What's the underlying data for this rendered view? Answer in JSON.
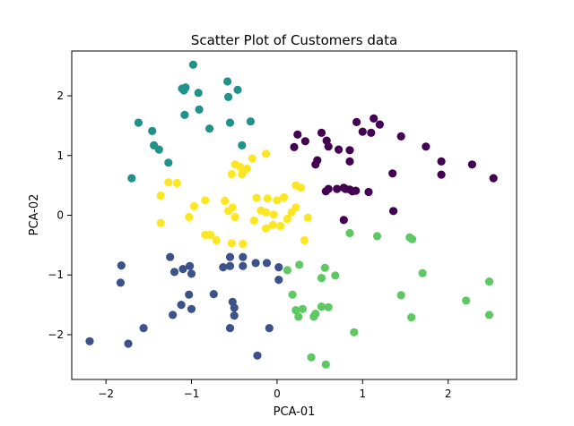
{
  "chart_data": {
    "type": "scatter",
    "title": "Scatter Plot of Customers data",
    "xlabel": "PCA-01",
    "ylabel": "PCA-02",
    "xlim": [
      -2.4,
      2.8
    ],
    "ylim": [
      -2.75,
      2.75
    ],
    "xticks": [
      -2,
      -1,
      0,
      1,
      2
    ],
    "yticks": [
      -2,
      -1,
      0,
      1,
      2
    ],
    "xtick_labels": [
      "−2",
      "−1",
      "0",
      "1",
      "2"
    ],
    "ytick_labels": [
      "−2",
      "−1",
      "0",
      "1",
      "2"
    ],
    "grid": false,
    "series": [
      {
        "color": "#440154",
        "points": [
          [
            0.24,
            1.35
          ],
          [
            0.2,
            1.14
          ],
          [
            0.33,
            1.24
          ],
          [
            0.52,
            1.38
          ],
          [
            0.58,
            1.25
          ],
          [
            0.6,
            1.15
          ],
          [
            0.47,
            0.92
          ],
          [
            0.45,
            0.85
          ],
          [
            0.72,
            1.1
          ],
          [
            0.85,
            1.09
          ],
          [
            0.85,
            0.9
          ],
          [
            0.93,
            1.56
          ],
          [
            1.0,
            1.4
          ],
          [
            1.1,
            1.38
          ],
          [
            1.13,
            1.62
          ],
          [
            1.2,
            1.52
          ],
          [
            1.45,
            1.32
          ],
          [
            1.74,
            1.15
          ],
          [
            1.92,
            0.9
          ],
          [
            1.92,
            0.68
          ],
          [
            2.28,
            0.85
          ],
          [
            2.53,
            0.62
          ],
          [
            1.35,
            0.7
          ],
          [
            0.57,
            0.4
          ],
          [
            0.7,
            0.44
          ],
          [
            0.78,
            0.46
          ],
          [
            0.85,
            0.43
          ],
          [
            0.88,
            0.4
          ],
          [
            0.92,
            0.41
          ],
          [
            1.07,
            0.39
          ],
          [
            0.6,
            0.44
          ],
          [
            0.8,
            0.44
          ],
          [
            0.78,
            -0.08
          ],
          [
            1.36,
            0.07
          ]
        ]
      },
      {
        "color": "#3b528b",
        "points": [
          [
            -2.19,
            -2.11
          ],
          [
            -1.82,
            -0.84
          ],
          [
            -1.83,
            -1.13
          ],
          [
            -1.74,
            -2.15
          ],
          [
            -1.56,
            -1.89
          ],
          [
            -1.25,
            -0.7
          ],
          [
            -1.2,
            -0.95
          ],
          [
            -1.1,
            -0.9
          ],
          [
            -1.02,
            -0.85
          ],
          [
            -1.0,
            -0.98
          ],
          [
            -1.03,
            -1.33
          ],
          [
            -1.12,
            -1.5
          ],
          [
            -1.22,
            -1.67
          ],
          [
            -1.0,
            -1.57
          ],
          [
            -0.74,
            -1.32
          ],
          [
            -0.63,
            -0.87
          ],
          [
            -0.55,
            -0.85
          ],
          [
            -0.55,
            -0.7
          ],
          [
            -0.4,
            -0.7
          ],
          [
            -0.4,
            -0.85
          ],
          [
            -0.25,
            -0.8
          ],
          [
            -0.12,
            -0.8
          ],
          [
            0.02,
            -0.87
          ],
          [
            0.02,
            -1.08
          ],
          [
            -0.52,
            -1.45
          ],
          [
            -0.5,
            -1.55
          ],
          [
            -0.5,
            -1.68
          ],
          [
            -0.55,
            -1.89
          ],
          [
            -0.23,
            -2.35
          ],
          [
            -0.09,
            -1.89
          ]
        ]
      },
      {
        "color": "#21918c",
        "points": [
          [
            -0.98,
            2.52
          ],
          [
            -1.11,
            2.12
          ],
          [
            -1.07,
            2.14
          ],
          [
            -1.09,
            2.09
          ],
          [
            -0.92,
            2.05
          ],
          [
            -0.58,
            2.24
          ],
          [
            -0.57,
            1.98
          ],
          [
            -0.46,
            2.1
          ],
          [
            -0.91,
            1.77
          ],
          [
            -1.08,
            1.68
          ],
          [
            -0.79,
            1.45
          ],
          [
            -0.55,
            1.55
          ],
          [
            -0.31,
            1.57
          ],
          [
            -1.62,
            1.55
          ],
          [
            -1.46,
            1.41
          ],
          [
            -1.44,
            1.17
          ],
          [
            -1.38,
            1.1
          ],
          [
            -1.27,
            0.88
          ],
          [
            -1.7,
            0.62
          ],
          [
            -0.41,
            1.17
          ]
        ]
      },
      {
        "color": "#5ec962",
        "points": [
          [
            0.12,
            -0.92
          ],
          [
            0.26,
            -0.83
          ],
          [
            0.18,
            -1.33
          ],
          [
            0.22,
            -1.59
          ],
          [
            0.25,
            -1.7
          ],
          [
            0.3,
            -1.57
          ],
          [
            0.43,
            -1.7
          ],
          [
            0.45,
            -1.65
          ],
          [
            0.52,
            -1.53
          ],
          [
            0.6,
            -1.54
          ],
          [
            0.56,
            -0.88
          ],
          [
            0.52,
            -1.05
          ],
          [
            0.68,
            -1.01
          ],
          [
            0.85,
            -0.3
          ],
          [
            1.17,
            -0.35
          ],
          [
            1.55,
            -0.37
          ],
          [
            1.58,
            -0.4
          ],
          [
            1.7,
            -0.97
          ],
          [
            1.45,
            -1.34
          ],
          [
            1.57,
            -1.71
          ],
          [
            0.9,
            -1.96
          ],
          [
            0.4,
            -2.38
          ],
          [
            0.57,
            -2.5
          ],
          [
            2.21,
            -1.43
          ],
          [
            2.48,
            -1.11
          ],
          [
            2.48,
            -1.67
          ]
        ]
      },
      {
        "color": "#fde725",
        "points": [
          [
            -1.27,
            0.55
          ],
          [
            -1.17,
            0.54
          ],
          [
            -1.36,
            0.33
          ],
          [
            -1.36,
            -0.13
          ],
          [
            -1.03,
            -0.03
          ],
          [
            -0.97,
            0.15
          ],
          [
            -0.84,
            0.25
          ],
          [
            -0.84,
            -0.33
          ],
          [
            -0.71,
            -0.42
          ],
          [
            -0.61,
            0.24
          ],
          [
            -0.57,
            0.07
          ],
          [
            -0.52,
            0.13
          ],
          [
            -0.49,
            -0.03
          ],
          [
            -0.53,
            -0.47
          ],
          [
            -0.4,
            -0.48
          ],
          [
            -0.27,
            -0.09
          ],
          [
            -0.19,
            0.08
          ],
          [
            -0.13,
            0.05
          ],
          [
            -0.13,
            -0.22
          ],
          [
            -0.05,
            -0.16
          ],
          [
            -0.04,
            0.01
          ],
          [
            0.04,
            -0.18
          ],
          [
            0.12,
            -0.06
          ],
          [
            0.17,
            0.05
          ],
          [
            0.22,
            0.13
          ],
          [
            0.08,
            0.3
          ],
          [
            0.0,
            0.25
          ],
          [
            -0.11,
            0.28
          ],
          [
            -0.24,
            0.29
          ],
          [
            0.22,
            0.5
          ],
          [
            0.28,
            0.46
          ],
          [
            0.36,
            -0.04
          ],
          [
            0.32,
            -0.42
          ],
          [
            -0.49,
            0.85
          ],
          [
            -0.43,
            0.81
          ],
          [
            -0.35,
            0.78
          ],
          [
            -0.39,
            0.75
          ],
          [
            -0.41,
            0.69
          ],
          [
            -0.53,
            0.69
          ],
          [
            -0.29,
            0.95
          ],
          [
            -0.13,
            1.03
          ],
          [
            -0.78,
            -0.33
          ]
        ]
      }
    ]
  }
}
